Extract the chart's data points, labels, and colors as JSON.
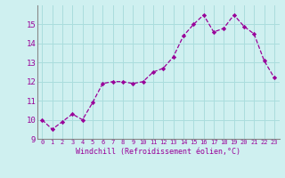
{
  "x": [
    0,
    1,
    2,
    3,
    4,
    5,
    6,
    7,
    8,
    9,
    10,
    11,
    12,
    13,
    14,
    15,
    16,
    17,
    18,
    19,
    20,
    21,
    22,
    23
  ],
  "y": [
    10.0,
    9.5,
    9.9,
    10.3,
    10.0,
    10.9,
    11.9,
    12.0,
    12.0,
    11.9,
    12.0,
    12.5,
    12.7,
    13.3,
    14.4,
    15.0,
    15.5,
    14.6,
    14.8,
    15.5,
    14.9,
    14.5,
    13.1,
    12.2
  ],
  "line_color": "#990099",
  "marker": "D",
  "marker_size": 2.2,
  "background_color": "#cff0f0",
  "grid_color": "#aadddd",
  "xlabel": "Windchill (Refroidissement éolien,°C)",
  "xlabel_color": "#990099",
  "tick_color": "#990099",
  "ylim": [
    9,
    16
  ],
  "xlim_min": -0.5,
  "xlim_max": 23.5,
  "yticks": [
    9,
    10,
    11,
    12,
    13,
    14,
    15
  ],
  "xticks": [
    0,
    1,
    2,
    3,
    4,
    5,
    6,
    7,
    8,
    9,
    10,
    11,
    12,
    13,
    14,
    15,
    16,
    17,
    18,
    19,
    20,
    21,
    22,
    23
  ],
  "ytick_fontsize": 6.5,
  "xtick_fontsize": 5.0,
  "xlabel_fontsize": 6.0,
  "spine_color": "#888888",
  "linewidth": 0.9
}
